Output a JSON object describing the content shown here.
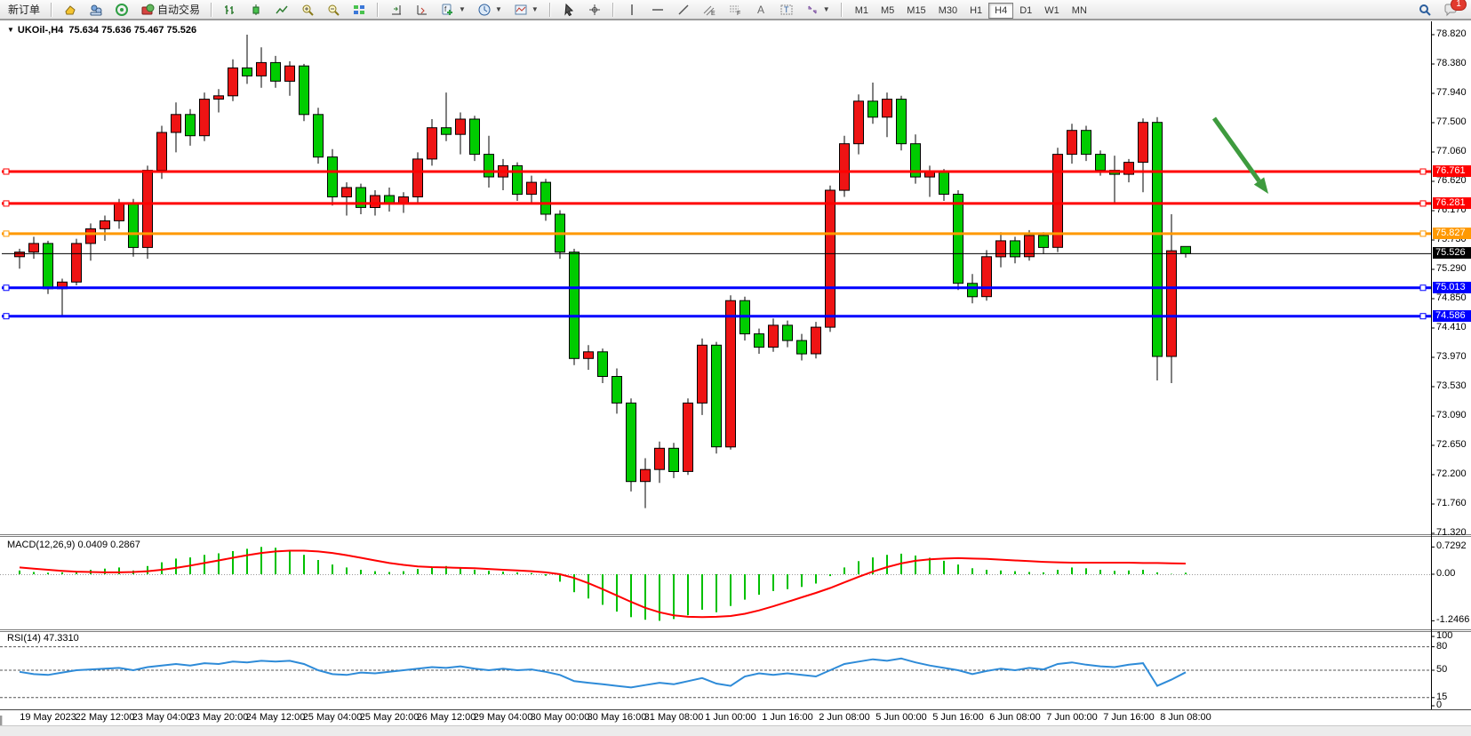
{
  "ui": {
    "toolbar": {
      "new_order_label": "新订单",
      "autotrade_label": "自动交易",
      "timeframes": [
        "M1",
        "M5",
        "M15",
        "M30",
        "H1",
        "H4",
        "D1",
        "W1",
        "MN"
      ],
      "active_timeframe": "H4",
      "chat_badge": "1",
      "icon_names": [
        "new-chart-icon",
        "market-watch-icon",
        "navigator-icon",
        "autotrade-icon",
        "bar-chart-icon",
        "candlestick-icon",
        "line-chart-icon",
        "zoom-in-icon",
        "zoom-out-icon",
        "tile-windows-icon",
        "auto-scroll-icon",
        "chart-shift-icon",
        "indicators-icon",
        "periods-icon",
        "templates-icon",
        "cursor-icon",
        "crosshair-icon",
        "vline-icon",
        "hline-icon",
        "trendline-icon",
        "channel-icon",
        "fibonacci-icon",
        "text-icon",
        "label-icon",
        "arrows-icon",
        "search-icon",
        "chat-icon"
      ]
    },
    "chart": {
      "title": "UKOil-,H4",
      "ohlc_display": "75.634 75.636 75.467 75.526",
      "price_axis": [
        "78.820",
        "78.380",
        "77.940",
        "77.500",
        "77.060",
        "76.620",
        "76.170",
        "75.730",
        "75.290",
        "74.850",
        "74.410",
        "73.970",
        "73.530",
        "73.090",
        "72.650",
        "72.200",
        "71.760",
        "71.320"
      ],
      "dates": [
        "19 May 2023",
        "22 May 12:00",
        "23 May 04:00",
        "23 May 20:00",
        "24 May 12:00",
        "25 May 04:00",
        "25 May 20:00",
        "26 May 12:00",
        "29 May 04:00",
        "30 May 00:00",
        "30 May 16:00",
        "31 May 08:00",
        "1 Jun 00:00",
        "1 Jun 16:00",
        "2 Jun 08:00",
        "5 Jun 00:00",
        "5 Jun 16:00",
        "6 Jun 08:00",
        "7 Jun 00:00",
        "7 Jun 16:00",
        "8 Jun 08:00"
      ]
    }
  },
  "chart_data": {
    "type": "candlestick",
    "symbol": "UKOil-",
    "timeframe": "H4",
    "bull_color": "#EE1414",
    "bear_color": "#00CC00",
    "candles": [
      [
        75.48,
        75.6,
        75.3,
        75.55
      ],
      [
        75.55,
        75.78,
        75.45,
        75.68
      ],
      [
        75.68,
        75.72,
        74.92,
        75.0
      ],
      [
        75.0,
        75.15,
        74.6,
        75.1
      ],
      [
        75.1,
        75.75,
        75.05,
        75.68
      ],
      [
        75.68,
        75.98,
        75.42,
        75.9
      ],
      [
        75.9,
        76.1,
        75.72,
        76.02
      ],
      [
        76.02,
        76.35,
        75.9,
        76.28
      ],
      [
        76.28,
        76.35,
        75.48,
        75.62
      ],
      [
        75.62,
        76.85,
        75.45,
        76.78
      ],
      [
        76.78,
        77.45,
        76.65,
        77.35
      ],
      [
        77.35,
        77.8,
        77.05,
        77.62
      ],
      [
        77.62,
        77.7,
        77.15,
        77.3
      ],
      [
        77.3,
        77.95,
        77.22,
        77.85
      ],
      [
        77.85,
        78.0,
        77.65,
        77.9
      ],
      [
        77.9,
        78.45,
        77.82,
        78.32
      ],
      [
        78.32,
        78.82,
        78.08,
        78.2
      ],
      [
        78.2,
        78.63,
        78.02,
        78.4
      ],
      [
        78.4,
        78.5,
        78.02,
        78.12
      ],
      [
        78.12,
        78.42,
        77.9,
        78.35
      ],
      [
        78.35,
        78.38,
        77.52,
        77.62
      ],
      [
        77.62,
        77.72,
        76.88,
        76.98
      ],
      [
        76.98,
        77.1,
        76.25,
        76.38
      ],
      [
        76.38,
        76.6,
        76.1,
        76.52
      ],
      [
        76.52,
        76.58,
        76.12,
        76.22
      ],
      [
        76.22,
        76.48,
        76.1,
        76.4
      ],
      [
        76.4,
        76.52,
        76.16,
        76.28
      ],
      [
        76.28,
        76.45,
        76.14,
        76.38
      ],
      [
        76.38,
        77.05,
        76.3,
        76.95
      ],
      [
        76.95,
        77.55,
        76.85,
        77.42
      ],
      [
        77.42,
        77.95,
        77.22,
        77.32
      ],
      [
        77.32,
        77.65,
        77.02,
        77.55
      ],
      [
        77.55,
        77.6,
        76.92,
        77.02
      ],
      [
        77.02,
        77.3,
        76.52,
        76.68
      ],
      [
        76.68,
        76.95,
        76.48,
        76.85
      ],
      [
        76.85,
        76.9,
        76.32,
        76.42
      ],
      [
        76.42,
        76.7,
        76.28,
        76.6
      ],
      [
        76.6,
        76.65,
        76.02,
        76.12
      ],
      [
        76.12,
        76.18,
        75.45,
        75.55
      ],
      [
        75.55,
        75.6,
        73.85,
        73.95
      ],
      [
        73.95,
        74.15,
        73.78,
        74.05
      ],
      [
        74.05,
        74.1,
        73.58,
        73.68
      ],
      [
        73.68,
        73.8,
        73.12,
        73.28
      ],
      [
        73.28,
        73.35,
        71.95,
        72.1
      ],
      [
        72.1,
        72.45,
        71.7,
        72.28
      ],
      [
        72.28,
        72.7,
        72.08,
        72.6
      ],
      [
        72.6,
        72.68,
        72.15,
        72.25
      ],
      [
        72.25,
        73.35,
        72.2,
        73.28
      ],
      [
        73.28,
        74.25,
        73.1,
        74.15
      ],
      [
        74.15,
        74.2,
        72.52,
        72.62
      ],
      [
        72.62,
        74.9,
        72.58,
        74.82
      ],
      [
        74.82,
        74.88,
        74.22,
        74.32
      ],
      [
        74.32,
        74.4,
        74.02,
        74.12
      ],
      [
        74.12,
        74.55,
        74.05,
        74.45
      ],
      [
        74.45,
        74.52,
        74.12,
        74.22
      ],
      [
        74.22,
        74.32,
        73.92,
        74.02
      ],
      [
        74.02,
        74.5,
        73.95,
        74.42
      ],
      [
        74.42,
        76.55,
        74.35,
        76.48
      ],
      [
        76.48,
        77.3,
        76.38,
        77.18
      ],
      [
        77.18,
        77.92,
        77.02,
        77.82
      ],
      [
        77.82,
        78.1,
        77.48,
        77.58
      ],
      [
        77.58,
        77.95,
        77.28,
        77.85
      ],
      [
        77.85,
        77.9,
        77.08,
        77.18
      ],
      [
        77.18,
        77.32,
        76.58,
        76.68
      ],
      [
        76.68,
        76.85,
        76.38,
        76.76
      ],
      [
        76.76,
        76.8,
        76.32,
        76.42
      ],
      [
        76.42,
        76.48,
        74.98,
        75.08
      ],
      [
        75.08,
        75.22,
        74.78,
        74.88
      ],
      [
        74.88,
        75.58,
        74.82,
        75.48
      ],
      [
        75.48,
        75.85,
        75.32,
        75.72
      ],
      [
        75.72,
        75.78,
        75.38,
        75.48
      ],
      [
        75.48,
        75.88,
        75.42,
        75.8
      ],
      [
        75.8,
        75.85,
        75.52,
        75.62
      ],
      [
        75.62,
        77.12,
        75.55,
        77.02
      ],
      [
        77.02,
        77.48,
        76.88,
        77.38
      ],
      [
        77.38,
        77.45,
        76.92,
        77.02
      ],
      [
        77.02,
        77.08,
        76.7,
        76.78
      ],
      [
        76.78,
        77.0,
        76.3,
        76.72
      ],
      [
        76.72,
        76.95,
        76.6,
        76.9
      ],
      [
        76.9,
        77.56,
        76.45,
        77.5
      ],
      [
        77.5,
        77.58,
        73.62,
        73.98
      ],
      [
        73.98,
        76.12,
        73.58,
        75.57
      ],
      [
        75.634,
        75.636,
        75.467,
        75.526
      ]
    ],
    "hlines": [
      {
        "price": 76.761,
        "label": "76.761",
        "color": "#FF0000",
        "width": 3
      },
      {
        "price": 76.281,
        "label": "76.281",
        "color": "#FF0000",
        "width": 3
      },
      {
        "price": 75.827,
        "label": "75.827",
        "color": "#FF9900",
        "width": 3
      },
      {
        "price": 75.526,
        "label": "75.526",
        "color": "#000000",
        "width": 1
      },
      {
        "price": 75.013,
        "label": "75.013",
        "color": "#0000FF",
        "width": 3
      },
      {
        "price": 74.586,
        "label": "74.586",
        "color": "#0000FF",
        "width": 3
      }
    ],
    "arrow": {
      "color": "#3E9B3E",
      "from_price": 77.56,
      "to_price": 76.43
    },
    "indicators": [
      {
        "name": "MACD",
        "label": "MACD(12,26,9) 0.0409 0.2867",
        "scale_labels": [
          "0.7292",
          "0.00",
          "-1.2466"
        ],
        "hist_color": "#00C000",
        "signal_color": "#FF0000",
        "histogram": [
          0.1,
          0.06,
          0.04,
          0.05,
          0.08,
          0.12,
          0.15,
          0.18,
          0.1,
          0.22,
          0.32,
          0.42,
          0.45,
          0.52,
          0.56,
          0.62,
          0.68,
          0.73,
          0.71,
          0.65,
          0.52,
          0.38,
          0.26,
          0.18,
          0.12,
          0.08,
          0.06,
          0.08,
          0.14,
          0.2,
          0.22,
          0.18,
          0.12,
          0.09,
          0.07,
          0.05,
          0.03,
          -0.04,
          -0.2,
          -0.48,
          -0.65,
          -0.82,
          -1.0,
          -1.15,
          -1.22,
          -1.2466,
          -1.2,
          -1.1,
          -0.95,
          -1.02,
          -0.85,
          -0.68,
          -0.55,
          -0.45,
          -0.4,
          -0.34,
          -0.25,
          -0.05,
          0.18,
          0.35,
          0.45,
          0.52,
          0.55,
          0.5,
          0.44,
          0.36,
          0.26,
          0.16,
          0.12,
          0.1,
          0.08,
          0.06,
          0.05,
          0.12,
          0.18,
          0.16,
          0.12,
          0.09,
          0.1,
          0.12,
          0.05,
          0.01,
          0.0409
        ],
        "signal": [
          0.18,
          0.15,
          0.12,
          0.09,
          0.07,
          0.06,
          0.05,
          0.05,
          0.06,
          0.08,
          0.12,
          0.17,
          0.23,
          0.3,
          0.37,
          0.44,
          0.51,
          0.57,
          0.61,
          0.63,
          0.63,
          0.61,
          0.57,
          0.51,
          0.44,
          0.37,
          0.3,
          0.25,
          0.21,
          0.19,
          0.18,
          0.17,
          0.16,
          0.14,
          0.12,
          0.1,
          0.08,
          0.05,
          0.0,
          -0.1,
          -0.24,
          -0.4,
          -0.57,
          -0.74,
          -0.9,
          -1.02,
          -1.1,
          -1.14,
          -1.15,
          -1.14,
          -1.12,
          -1.06,
          -0.97,
          -0.86,
          -0.74,
          -0.62,
          -0.5,
          -0.37,
          -0.22,
          -0.07,
          0.07,
          0.19,
          0.29,
          0.36,
          0.4,
          0.42,
          0.43,
          0.42,
          0.41,
          0.39,
          0.37,
          0.35,
          0.33,
          0.32,
          0.31,
          0.31,
          0.31,
          0.31,
          0.31,
          0.3,
          0.3,
          0.29,
          0.2867
        ]
      },
      {
        "name": "RSI",
        "label": "RSI(14) 47.3310",
        "levels": [
          "100",
          "80",
          "50",
          "15",
          "0"
        ],
        "color": "#2E8BD8",
        "values": [
          48,
          45,
          44,
          47,
          50,
          51,
          52,
          53,
          50,
          54,
          56,
          58,
          56,
          59,
          58,
          61,
          60,
          62,
          61,
          62,
          58,
          50,
          45,
          44,
          47,
          46,
          48,
          50,
          52,
          54,
          53,
          55,
          52,
          50,
          52,
          50,
          51,
          48,
          44,
          36,
          34,
          32,
          30,
          28,
          31,
          34,
          32,
          36,
          40,
          33,
          30,
          42,
          46,
          44,
          46,
          44,
          42,
          50,
          58,
          61,
          64,
          62,
          65,
          60,
          56,
          53,
          50,
          45,
          49,
          52,
          50,
          53,
          51,
          58,
          60,
          57,
          55,
          54,
          57,
          59,
          30,
          38,
          47.33
        ]
      }
    ]
  }
}
